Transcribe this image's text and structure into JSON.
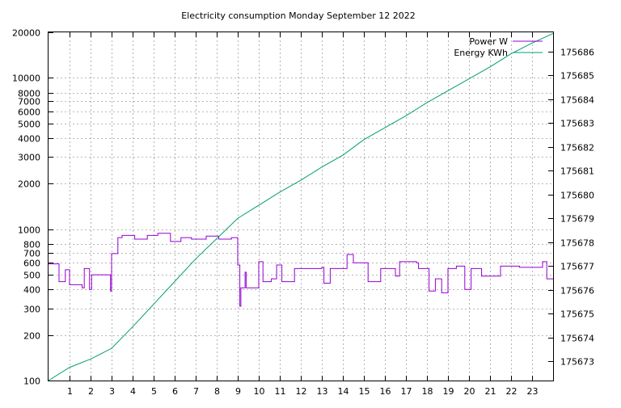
{
  "chart_data": {
    "type": "line",
    "title": "Electricity consumption Monday September 12 2022",
    "xlabel": "",
    "ylabel": "",
    "y2label": "",
    "grid": true,
    "legend_position": "top-right",
    "x_range": [
      0,
      24
    ],
    "x_ticks": [
      1,
      2,
      3,
      4,
      5,
      6,
      7,
      8,
      9,
      10,
      11,
      12,
      13,
      14,
      15,
      16,
      17,
      18,
      19,
      20,
      21,
      22,
      23
    ],
    "y_scale": "log",
    "y_range": [
      100,
      20000
    ],
    "y_ticks": [
      100,
      200,
      300,
      400,
      500,
      600,
      700,
      800,
      1000,
      2000,
      3000,
      4000,
      5000,
      6000,
      7000,
      8000,
      10000,
      20000
    ],
    "y2_scale": "linear",
    "y2_range": [
      175672.2,
      175686.8
    ],
    "y2_ticks": [
      175673,
      175674,
      175675,
      175676,
      175677,
      175678,
      175679,
      175680,
      175681,
      175682,
      175683,
      175684,
      175685,
      175686
    ],
    "series": [
      {
        "name": "Power W",
        "axis": "y",
        "color": "#9400d3",
        "step": true,
        "points": [
          [
            0.0,
            590
          ],
          [
            0.5,
            590
          ],
          [
            0.5,
            450
          ],
          [
            0.8,
            450
          ],
          [
            0.8,
            540
          ],
          [
            1.0,
            540
          ],
          [
            1.0,
            430
          ],
          [
            1.6,
            430
          ],
          [
            1.6,
            410
          ],
          [
            1.7,
            410
          ],
          [
            1.7,
            550
          ],
          [
            1.95,
            550
          ],
          [
            1.95,
            400
          ],
          [
            2.05,
            400
          ],
          [
            2.05,
            500
          ],
          [
            2.95,
            500
          ],
          [
            2.95,
            390
          ],
          [
            3.0,
            390
          ],
          [
            3.0,
            690
          ],
          [
            3.3,
            690
          ],
          [
            3.3,
            880
          ],
          [
            3.5,
            880
          ],
          [
            3.5,
            910
          ],
          [
            4.1,
            910
          ],
          [
            4.1,
            860
          ],
          [
            4.7,
            860
          ],
          [
            4.7,
            910
          ],
          [
            5.2,
            910
          ],
          [
            5.2,
            940
          ],
          [
            5.8,
            940
          ],
          [
            5.8,
            830
          ],
          [
            6.3,
            830
          ],
          [
            6.3,
            880
          ],
          [
            6.8,
            880
          ],
          [
            6.8,
            860
          ],
          [
            7.5,
            860
          ],
          [
            7.5,
            900
          ],
          [
            8.1,
            900
          ],
          [
            8.1,
            860
          ],
          [
            8.7,
            860
          ],
          [
            8.7,
            880
          ],
          [
            9.0,
            880
          ],
          [
            9.0,
            580
          ],
          [
            9.1,
            580
          ],
          [
            9.1,
            310
          ],
          [
            9.15,
            310
          ],
          [
            9.15,
            410
          ],
          [
            9.35,
            410
          ],
          [
            9.35,
            520
          ],
          [
            9.4,
            520
          ],
          [
            9.4,
            410
          ],
          [
            10.0,
            410
          ],
          [
            10.0,
            610
          ],
          [
            10.2,
            610
          ],
          [
            10.2,
            450
          ],
          [
            10.6,
            450
          ],
          [
            10.6,
            470
          ],
          [
            10.85,
            470
          ],
          [
            10.85,
            580
          ],
          [
            11.1,
            580
          ],
          [
            11.1,
            450
          ],
          [
            11.7,
            450
          ],
          [
            11.7,
            550
          ],
          [
            13.0,
            550
          ],
          [
            13.0,
            560
          ],
          [
            13.1,
            560
          ],
          [
            13.1,
            440
          ],
          [
            13.4,
            440
          ],
          [
            13.4,
            550
          ],
          [
            14.2,
            550
          ],
          [
            14.2,
            680
          ],
          [
            14.5,
            680
          ],
          [
            14.5,
            600
          ],
          [
            15.2,
            600
          ],
          [
            15.2,
            450
          ],
          [
            15.8,
            450
          ],
          [
            15.8,
            550
          ],
          [
            16.5,
            550
          ],
          [
            16.5,
            490
          ],
          [
            16.7,
            490
          ],
          [
            16.7,
            610
          ],
          [
            17.5,
            610
          ],
          [
            17.5,
            600
          ],
          [
            17.6,
            600
          ],
          [
            17.6,
            550
          ],
          [
            18.1,
            550
          ],
          [
            18.1,
            390
          ],
          [
            18.4,
            390
          ],
          [
            18.4,
            470
          ],
          [
            18.7,
            470
          ],
          [
            18.7,
            380
          ],
          [
            19.0,
            380
          ],
          [
            19.0,
            550
          ],
          [
            19.4,
            550
          ],
          [
            19.4,
            570
          ],
          [
            19.8,
            570
          ],
          [
            19.8,
            400
          ],
          [
            20.1,
            400
          ],
          [
            20.1,
            550
          ],
          [
            20.6,
            550
          ],
          [
            20.6,
            490
          ],
          [
            21.5,
            490
          ],
          [
            21.5,
            570
          ],
          [
            22.4,
            570
          ],
          [
            22.4,
            560
          ],
          [
            23.5,
            560
          ],
          [
            23.5,
            610
          ],
          [
            23.7,
            610
          ],
          [
            23.7,
            470
          ],
          [
            24.0,
            470
          ]
        ]
      },
      {
        "name": "Energy KWh",
        "axis": "y2",
        "color": "#009e73",
        "step": false,
        "points": [
          [
            0.0,
            175672.2
          ],
          [
            1.0,
            175672.75
          ],
          [
            2.0,
            175673.1
          ],
          [
            3.0,
            175673.55
          ],
          [
            4.0,
            175674.45
          ],
          [
            5.0,
            175675.4
          ],
          [
            6.0,
            175676.35
          ],
          [
            7.0,
            175677.3
          ],
          [
            8.0,
            175678.15
          ],
          [
            9.0,
            175679.0
          ],
          [
            10.0,
            175679.55
          ],
          [
            11.0,
            175680.1
          ],
          [
            12.0,
            175680.6
          ],
          [
            13.0,
            175681.15
          ],
          [
            14.0,
            175681.65
          ],
          [
            15.0,
            175682.3
          ],
          [
            16.0,
            175682.8
          ],
          [
            17.0,
            175683.3
          ],
          [
            18.0,
            175683.85
          ],
          [
            19.0,
            175684.35
          ],
          [
            20.0,
            175684.85
          ],
          [
            21.0,
            175685.35
          ],
          [
            22.0,
            175685.9
          ],
          [
            23.0,
            175686.35
          ],
          [
            24.0,
            175686.75
          ]
        ]
      }
    ]
  }
}
